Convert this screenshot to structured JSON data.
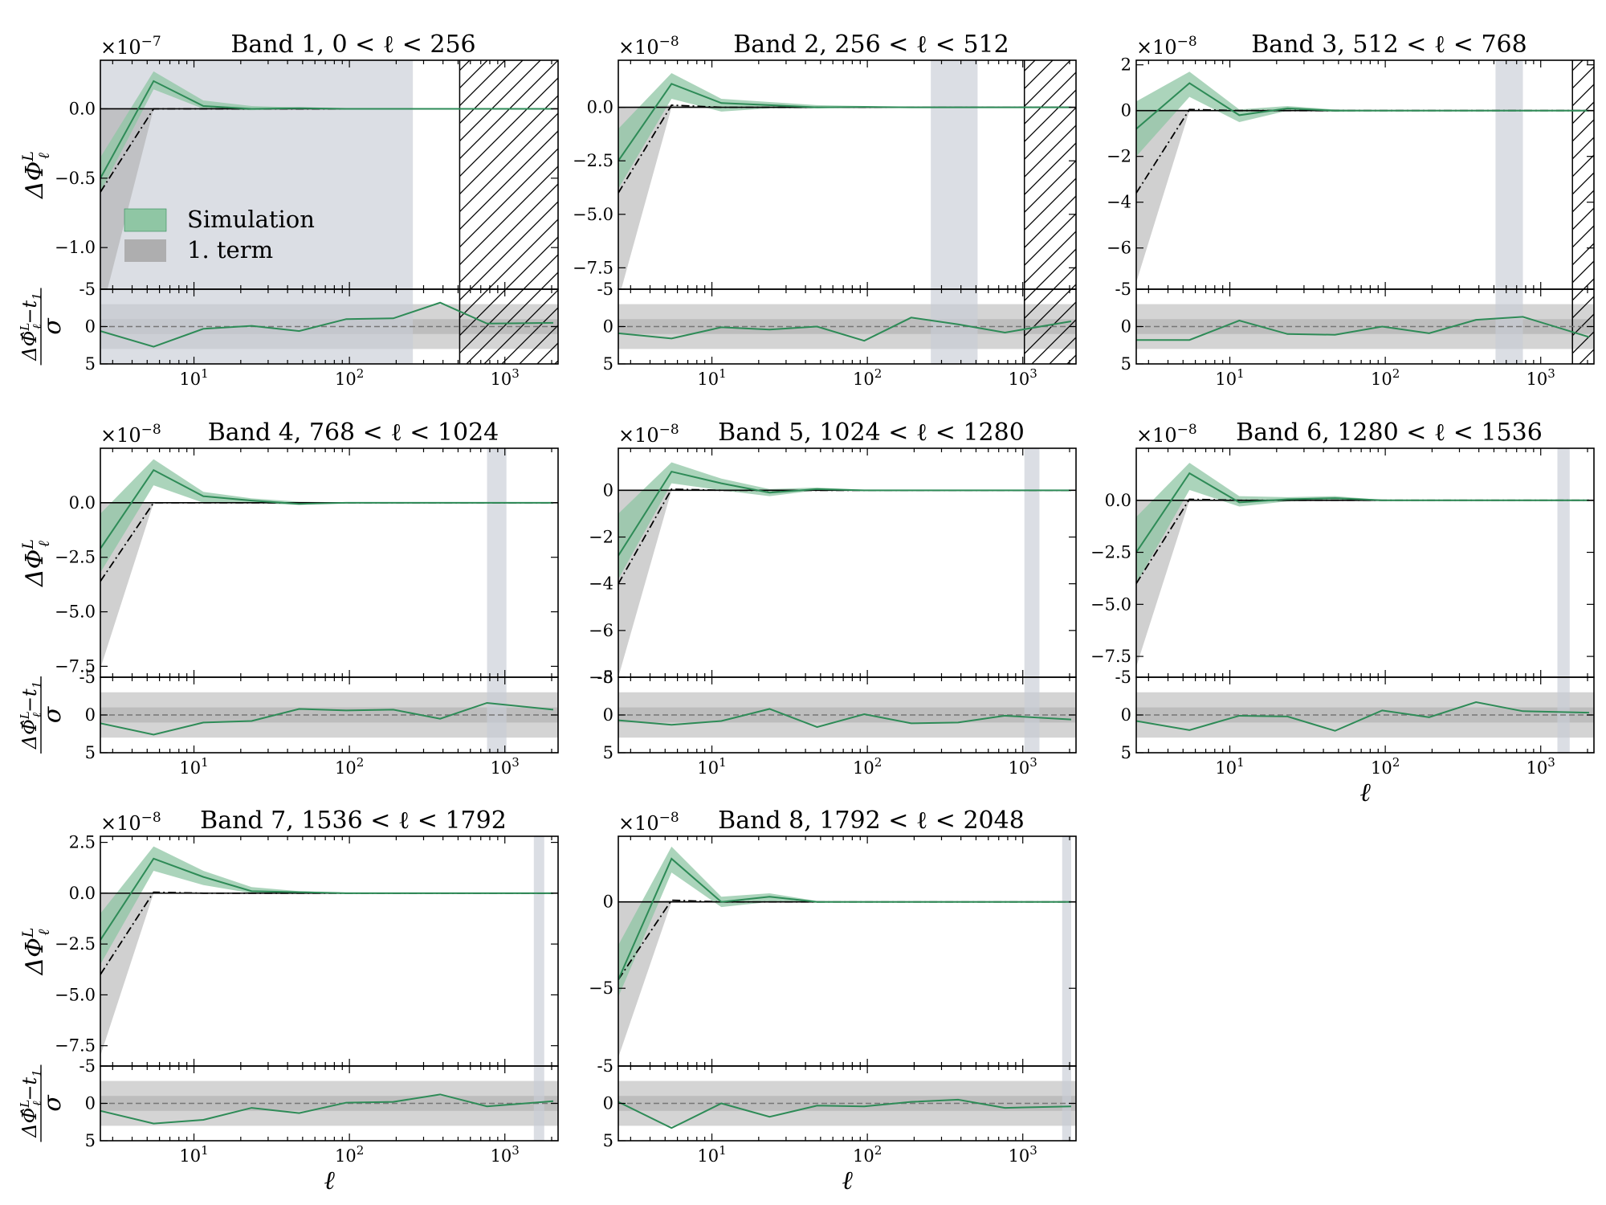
{
  "colors": {
    "simulation": "#2e8b57",
    "simulation_band": "#8fc6a4",
    "term1_band": "#a9a9a9",
    "mask": "#c7ccd6",
    "sigma_outer": "#d4d4d4",
    "sigma_inner": "#b3b3b3"
  },
  "legend": {
    "simulation": "Simulation",
    "term1": "1. term",
    "placement": "lower-left of band 1 top panel"
  },
  "common": {
    "ell": [
      2.5,
      5.5,
      11.5,
      23.5,
      47.5,
      95.5,
      191.5,
      383.5,
      767.5,
      2047.5
    ],
    "xlim": [
      2.5,
      2200
    ],
    "xticks": [
      "10",
      "2",
      "10",
      "3"
    ],
    "x_major": [
      10,
      100,
      1000
    ],
    "xlabel": "ℓ",
    "ylabel_top_main": "ΔΦ",
    "ylabel_top_sub": "ℓ",
    "ylabel_top_sup": "L",
    "ylabel_bot_num": "ΔΦ̂",
    "ylabel_bot_sup": "L",
    "ylabel_bot_sub": "ℓ",
    "ylabel_bot_t": "−t",
    "ylabel_bot_t_sub": "1",
    "ylabel_bot_den": "σ",
    "residual_ylim": [
      5,
      -5
    ],
    "residual_ticks": [
      "-5",
      "0",
      "5"
    ],
    "residual_tick_values": [
      -5,
      0,
      5
    ]
  },
  "chart_data": [
    {
      "type": "line",
      "band": 1,
      "title": "Band 1, 0 < ℓ < 256",
      "multiplier": "×10",
      "multiplier_exp": "−7",
      "scale": 1e-07,
      "ylim": [
        -1.3,
        0.35
      ],
      "yticks": [
        {
          "v": 0.0,
          "label": "0.0"
        },
        {
          "v": -0.5,
          "label": "−0.5"
        },
        {
          "v": -1.0,
          "label": "−1.0"
        }
      ],
      "mask": [
        2.5,
        256
      ],
      "hatch": [
        512,
        2200
      ],
      "show_legend": true,
      "show_ylabel": true,
      "show_xlabel": false,
      "series": [
        {
          "name": "Simulation",
          "values": [
            -0.5,
            0.2,
            0.02,
            0.0,
            0.005,
            0.0,
            0.0,
            0.0,
            0.0,
            0.0
          ],
          "lower": [
            -0.6,
            0.14,
            0.0,
            -0.01,
            0.0,
            -0.005,
            0.0,
            0.0,
            0.0,
            0.0
          ],
          "upper": [
            -0.35,
            0.27,
            0.06,
            0.02,
            0.01,
            0.005,
            0.0,
            0.0,
            0.0,
            0.0
          ]
        },
        {
          "name": "1. term",
          "values": [
            -0.6,
            0.0,
            0.0,
            0.0,
            0.0,
            0.0,
            0.0,
            0.0,
            0.0,
            0.0
          ],
          "lower": [
            -1.5,
            0.0,
            0.0,
            0.0,
            0.0,
            0.0,
            0.0,
            0.0,
            0.0,
            0.0
          ],
          "upper": [
            0.0,
            0.0,
            0.0,
            0.0,
            0.0,
            0.0,
            0.0,
            0.0,
            0.0,
            0.0
          ]
        }
      ],
      "residual": [
        0.6,
        2.7,
        0.3,
        -0.1,
        0.6,
        -1.0,
        -1.1,
        -3.2,
        -0.4,
        -0.5
      ]
    },
    {
      "type": "line",
      "band": 2,
      "title": "Band 2, 256 < ℓ < 512",
      "multiplier": "×10",
      "multiplier_exp": "−8",
      "scale": 1e-08,
      "ylim": [
        -8.5,
        2.2
      ],
      "yticks": [
        {
          "v": 0.0,
          "label": "0.0"
        },
        {
          "v": -2.5,
          "label": "−2.5"
        },
        {
          "v": -5.0,
          "label": "−5.0"
        },
        {
          "v": -7.5,
          "label": "−7.5"
        }
      ],
      "mask": [
        256,
        512
      ],
      "hatch": [
        1024,
        2200
      ],
      "show_legend": false,
      "show_ylabel": false,
      "show_xlabel": false,
      "series": [
        {
          "name": "Simulation",
          "values": [
            -2.5,
            1.1,
            0.2,
            0.1,
            0.0,
            0.02,
            0.0,
            0.0,
            0.0,
            0.0
          ],
          "lower": [
            -3.8,
            0.4,
            -0.2,
            -0.05,
            -0.05,
            -0.02,
            0.0,
            0.0,
            0.0,
            0.0
          ],
          "upper": [
            -1.0,
            1.6,
            0.4,
            0.25,
            0.1,
            0.06,
            0.0,
            0.0,
            0.0,
            0.0
          ]
        },
        {
          "name": "1. term",
          "values": [
            -4.0,
            0.1,
            0.0,
            0.0,
            0.0,
            0.0,
            0.0,
            0.0,
            0.0,
            0.0
          ],
          "lower": [
            -9.0,
            0.0,
            0.0,
            0.0,
            0.0,
            0.0,
            0.0,
            0.0,
            0.0,
            0.0
          ],
          "upper": [
            0.0,
            0.1,
            0.0,
            0.0,
            0.0,
            0.0,
            0.0,
            0.0,
            0.0,
            0.0
          ]
        }
      ],
      "residual": [
        0.9,
        1.6,
        0.1,
        0.4,
        0.0,
        1.9,
        -1.2,
        -0.3,
        0.8,
        -0.7
      ]
    },
    {
      "type": "line",
      "band": 3,
      "title": "Band 3, 512 < ℓ < 768",
      "multiplier": "×10",
      "multiplier_exp": "−8",
      "scale": 1e-08,
      "ylim": [
        -7.8,
        2.2
      ],
      "yticks": [
        {
          "v": 2,
          "label": "2"
        },
        {
          "v": 0,
          "label": "0"
        },
        {
          "v": -2,
          "label": "−2"
        },
        {
          "v": -4,
          "label": "−4"
        },
        {
          "v": -6,
          "label": "−6"
        }
      ],
      "mask": [
        512,
        768
      ],
      "hatch": [
        1600,
        2200
      ],
      "show_legend": false,
      "show_ylabel": false,
      "show_xlabel": false,
      "series": [
        {
          "name": "Simulation",
          "values": [
            -0.8,
            1.2,
            -0.2,
            0.1,
            0.0,
            0.0,
            0.0,
            0.0,
            0.0,
            0.0
          ],
          "lower": [
            -2.0,
            0.6,
            -0.5,
            0.0,
            -0.05,
            0.0,
            0.0,
            0.0,
            0.0,
            0.0
          ],
          "upper": [
            0.4,
            1.7,
            0.05,
            0.2,
            0.05,
            0.02,
            0.0,
            0.0,
            0.0,
            0.0
          ]
        },
        {
          "name": "1. term",
          "values": [
            -3.6,
            0.05,
            0.0,
            0.0,
            0.0,
            0.0,
            0.0,
            0.0,
            0.0,
            0.0
          ],
          "lower": [
            -7.5,
            0.0,
            0.0,
            0.0,
            0.0,
            0.0,
            0.0,
            0.0,
            0.0,
            0.0
          ],
          "upper": [
            0.0,
            0.05,
            0.0,
            0.0,
            0.0,
            0.0,
            0.0,
            0.0,
            0.0,
            0.0
          ]
        }
      ],
      "residual": [
        1.8,
        1.8,
        -0.8,
        1.0,
        1.1,
        0.0,
        0.9,
        -0.9,
        -1.3,
        1.4
      ]
    },
    {
      "type": "line",
      "band": 4,
      "title": "Band 4, 768 < ℓ < 1024",
      "multiplier": "×10",
      "multiplier_exp": "−8",
      "scale": 1e-08,
      "ylim": [
        -8.0,
        2.5
      ],
      "yticks": [
        {
          "v": 0.0,
          "label": "0.0"
        },
        {
          "v": -2.5,
          "label": "−2.5"
        },
        {
          "v": -5.0,
          "label": "−5.0"
        },
        {
          "v": -7.5,
          "label": "−7.5"
        }
      ],
      "mask": [
        768,
        1024
      ],
      "hatch": null,
      "show_legend": false,
      "show_ylabel": true,
      "show_xlabel": false,
      "series": [
        {
          "name": "Simulation",
          "values": [
            -2.1,
            1.5,
            0.3,
            0.1,
            -0.05,
            0.0,
            0.0,
            0.0,
            0.0,
            0.0
          ],
          "lower": [
            -3.2,
            0.8,
            0.0,
            0.0,
            -0.1,
            0.0,
            0.0,
            0.0,
            0.0,
            0.0
          ],
          "upper": [
            -0.5,
            2.0,
            0.5,
            0.2,
            0.05,
            0.02,
            0.0,
            0.0,
            0.0,
            0.0
          ]
        },
        {
          "name": "1. term",
          "values": [
            -3.6,
            0.0,
            0.0,
            0.0,
            0.0,
            0.0,
            0.0,
            0.0,
            0.0,
            0.0
          ],
          "lower": [
            -7.6,
            0.0,
            0.0,
            0.0,
            0.0,
            0.0,
            0.0,
            0.0,
            0.0,
            0.0
          ],
          "upper": [
            0.0,
            0.0,
            0.0,
            0.0,
            0.0,
            0.0,
            0.0,
            0.0,
            0.0,
            0.0
          ]
        }
      ],
      "residual": [
        1.1,
        2.6,
        1.0,
        0.8,
        -0.8,
        -0.6,
        -0.7,
        0.5,
        -1.6,
        -0.7
      ]
    },
    {
      "type": "line",
      "band": 5,
      "title": "Band 5, 1024 < ℓ < 1280",
      "multiplier": "×10",
      "multiplier_exp": "−8",
      "scale": 1e-08,
      "ylim": [
        -8.0,
        1.8
      ],
      "yticks": [
        {
          "v": 0,
          "label": "0"
        },
        {
          "v": -2,
          "label": "−2"
        },
        {
          "v": -4,
          "label": "−4"
        },
        {
          "v": -6,
          "label": "−6"
        },
        {
          "v": -8,
          "label": "−8"
        }
      ],
      "mask": [
        1024,
        1280
      ],
      "hatch": null,
      "show_legend": false,
      "show_ylabel": false,
      "show_xlabel": false,
      "series": [
        {
          "name": "Simulation",
          "values": [
            -2.8,
            0.8,
            0.3,
            -0.1,
            0.05,
            0.0,
            0.0,
            0.0,
            0.0,
            0.0
          ],
          "lower": [
            -3.8,
            0.3,
            0.0,
            -0.25,
            0.0,
            0.0,
            0.0,
            0.0,
            0.0,
            0.0
          ],
          "upper": [
            -1.0,
            1.2,
            0.5,
            0.05,
            0.12,
            0.02,
            0.0,
            0.0,
            0.0,
            0.0
          ]
        },
        {
          "name": "1. term",
          "values": [
            -4.0,
            0.05,
            0.0,
            0.0,
            0.0,
            0.0,
            0.0,
            0.0,
            0.0,
            0.0
          ],
          "lower": [
            -8.0,
            0.0,
            0.0,
            0.0,
            0.0,
            0.0,
            0.0,
            0.0,
            0.0,
            0.0
          ],
          "upper": [
            0.0,
            0.05,
            0.0,
            0.0,
            0.0,
            0.0,
            0.0,
            0.0,
            0.0,
            0.0
          ]
        }
      ],
      "residual": [
        0.7,
        1.3,
        0.8,
        -0.8,
        1.6,
        -0.1,
        1.1,
        1.0,
        0.1,
        0.6
      ]
    },
    {
      "type": "line",
      "band": 6,
      "title": "Band 6, 1280 < ℓ < 1536",
      "multiplier": "×10",
      "multiplier_exp": "−8",
      "scale": 1e-08,
      "ylim": [
        -8.5,
        2.5
      ],
      "yticks": [
        {
          "v": 0.0,
          "label": "0.0"
        },
        {
          "v": -2.5,
          "label": "−2.5"
        },
        {
          "v": -5.0,
          "label": "−5.0"
        },
        {
          "v": -7.5,
          "label": "−7.5"
        }
      ],
      "mask": [
        1280,
        1536
      ],
      "hatch": null,
      "show_legend": false,
      "show_ylabel": false,
      "show_xlabel": true,
      "series": [
        {
          "name": "Simulation",
          "values": [
            -2.5,
            1.3,
            -0.1,
            0.05,
            0.1,
            0.0,
            0.0,
            0.0,
            0.0,
            0.0
          ],
          "lower": [
            -4.0,
            0.5,
            -0.3,
            -0.05,
            0.0,
            0.0,
            0.0,
            0.0,
            0.0,
            0.0
          ],
          "upper": [
            -0.8,
            1.8,
            0.2,
            0.15,
            0.2,
            0.02,
            0.0,
            0.0,
            0.0,
            0.0
          ]
        },
        {
          "name": "1. term",
          "values": [
            -4.0,
            0.05,
            0.0,
            0.0,
            0.0,
            0.0,
            0.0,
            0.0,
            0.0,
            0.0
          ],
          "lower": [
            -8.0,
            0.0,
            0.0,
            0.0,
            0.0,
            0.0,
            0.0,
            0.0,
            0.0,
            0.0
          ],
          "upper": [
            0.0,
            0.05,
            0.0,
            0.0,
            0.0,
            0.0,
            0.0,
            0.0,
            0.0,
            0.0
          ]
        }
      ],
      "residual": [
        0.8,
        2.0,
        0.1,
        0.2,
        2.1,
        -0.6,
        0.3,
        -1.7,
        -0.5,
        -0.3
      ]
    },
    {
      "type": "line",
      "band": 7,
      "title": "Band 7, 1536 < ℓ < 1792",
      "multiplier": "×10",
      "multiplier_exp": "−8",
      "scale": 1e-08,
      "ylim": [
        -8.5,
        2.8
      ],
      "yticks": [
        {
          "v": 2.5,
          "label": "2.5"
        },
        {
          "v": 0.0,
          "label": "0.0"
        },
        {
          "v": -2.5,
          "label": "−2.5"
        },
        {
          "v": -5.0,
          "label": "−5.0"
        },
        {
          "v": -7.5,
          "label": "−7.5"
        }
      ],
      "mask": [
        1536,
        1792
      ],
      "hatch": null,
      "show_legend": false,
      "show_ylabel": true,
      "show_xlabel": true,
      "series": [
        {
          "name": "Simulation",
          "values": [
            -2.3,
            1.7,
            0.8,
            0.1,
            0.05,
            0.0,
            0.0,
            0.0,
            0.0,
            0.0
          ],
          "lower": [
            -3.5,
            1.1,
            0.4,
            0.0,
            0.0,
            0.0,
            0.0,
            0.0,
            0.0,
            0.0
          ],
          "upper": [
            -1.0,
            2.3,
            1.1,
            0.3,
            0.1,
            0.02,
            0.0,
            0.0,
            0.0,
            0.0
          ]
        },
        {
          "name": "1. term",
          "values": [
            -4.0,
            0.05,
            0.0,
            0.0,
            0.0,
            0.0,
            0.0,
            0.0,
            0.0,
            0.0
          ],
          "lower": [
            -8.0,
            0.0,
            0.0,
            0.0,
            0.0,
            0.0,
            0.0,
            0.0,
            0.0,
            0.0
          ],
          "upper": [
            0.0,
            0.05,
            0.0,
            0.0,
            0.0,
            0.0,
            0.0,
            0.0,
            0.0,
            0.0
          ]
        }
      ],
      "residual": [
        1.0,
        2.7,
        2.2,
        0.6,
        1.3,
        -0.1,
        -0.2,
        -1.2,
        0.4,
        -0.3
      ]
    },
    {
      "type": "line",
      "band": 8,
      "title": "Band 8, 1792 < ℓ < 2048",
      "multiplier": "×10",
      "multiplier_exp": "−8",
      "scale": 1e-08,
      "ylim": [
        -9.5,
        3.8
      ],
      "yticks": [
        {
          "v": 0,
          "label": "0"
        },
        {
          "v": -5,
          "label": "−5"
        }
      ],
      "mask": [
        1792,
        2048
      ],
      "hatch": null,
      "show_legend": false,
      "show_ylabel": false,
      "show_xlabel": true,
      "series": [
        {
          "name": "Simulation",
          "values": [
            -4.5,
            2.5,
            0.0,
            0.3,
            0.0,
            0.0,
            0.0,
            0.0,
            0.0,
            0.0
          ],
          "lower": [
            -5.5,
            1.7,
            -0.3,
            0.0,
            -0.05,
            0.0,
            0.0,
            0.0,
            0.0,
            0.0
          ],
          "upper": [
            -2.5,
            3.2,
            0.3,
            0.5,
            0.05,
            0.02,
            0.0,
            0.0,
            0.0,
            0.0
          ]
        },
        {
          "name": "1. term",
          "values": [
            -4.5,
            0.1,
            0.0,
            0.0,
            0.0,
            0.0,
            0.0,
            0.0,
            0.0,
            0.0
          ],
          "lower": [
            -9.0,
            0.0,
            0.0,
            0.0,
            0.0,
            0.0,
            0.0,
            0.0,
            0.0,
            0.0
          ],
          "upper": [
            0.0,
            0.1,
            0.0,
            0.0,
            0.0,
            0.0,
            0.0,
            0.0,
            0.0,
            0.0
          ]
        }
      ],
      "residual": [
        -0.2,
        3.3,
        0.0,
        1.8,
        0.3,
        0.4,
        -0.2,
        -0.5,
        0.6,
        0.4
      ]
    }
  ]
}
